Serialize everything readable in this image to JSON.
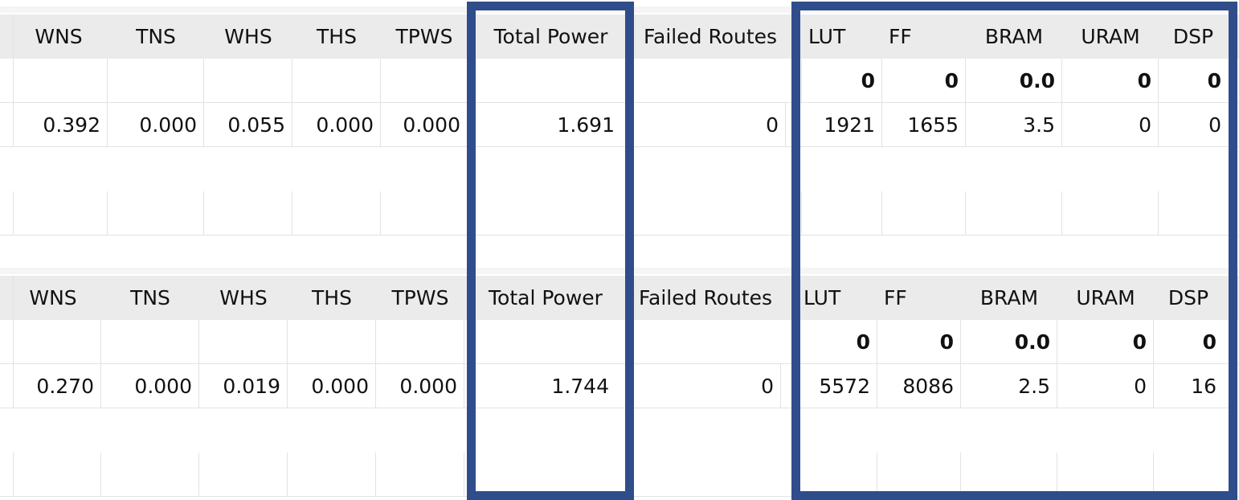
{
  "colors": {
    "highlight": "#2f4d8a",
    "header_bg": "#ebebeb",
    "grid": "#e2e2e2"
  },
  "top": {
    "headers": [
      "WNS",
      "TNS",
      "WHS",
      "THS",
      "TPWS",
      "Total Power",
      "Failed Routes",
      "LUT",
      "FF",
      "BRAM",
      "URAM",
      "DSP"
    ],
    "totals": {
      "LUT": "0",
      "FF": "0",
      "BRAM": "0.0",
      "URAM": "0",
      "DSP": "0"
    },
    "values": {
      "WNS": "0.392",
      "TNS": "0.000",
      "WHS": "0.055",
      "THS": "0.000",
      "TPWS": "0.000",
      "total_power": "1.691",
      "failed_routes": "0",
      "LUT": "1921",
      "FF": "1655",
      "BRAM": "3.5",
      "URAM": "0",
      "DSP": "0"
    }
  },
  "bottom": {
    "headers": [
      "WNS",
      "TNS",
      "WHS",
      "THS",
      "TPWS",
      "Total Power",
      "Failed Routes",
      "LUT",
      "FF",
      "BRAM",
      "URAM",
      "DSP"
    ],
    "totals": {
      "LUT": "0",
      "FF": "0",
      "BRAM": "0.0",
      "URAM": "0",
      "DSP": "0"
    },
    "values": {
      "WNS": "0.270",
      "TNS": "0.000",
      "WHS": "0.019",
      "THS": "0.000",
      "TPWS": "0.000",
      "total_power": "1.744",
      "failed_routes": "0",
      "LUT": "5572",
      "FF": "8086",
      "BRAM": "2.5",
      "URAM": "0",
      "DSP": "16"
    }
  }
}
